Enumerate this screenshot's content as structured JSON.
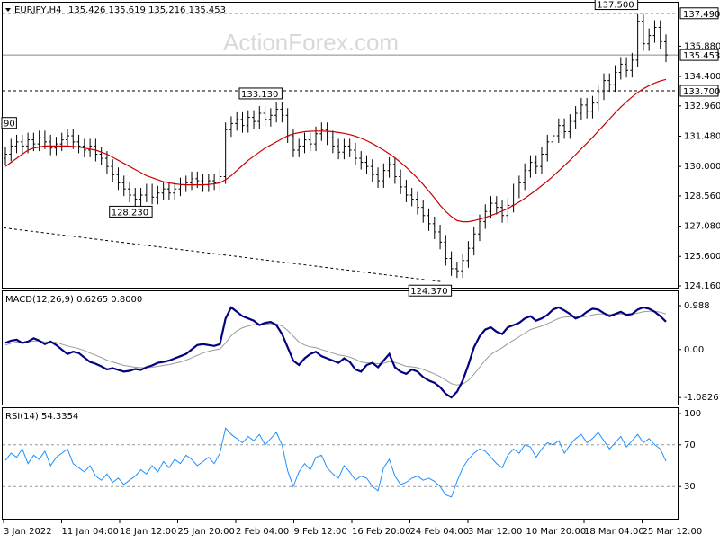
{
  "header": {
    "symbol_label": "EURJPY,H4",
    "ohlc_label": "135.426 135.619 135.216 135.453"
  },
  "watermark": "ActionForex.com",
  "colors": {
    "price_bars": "#000000",
    "moving_average": "#cc0000",
    "macd_line": "#000080",
    "signal_line": "#999999",
    "rsi_line": "#1e90ff",
    "grid": "#000000"
  },
  "chart_data": [
    {
      "type": "bar",
      "name": "price",
      "y_ticks": [
        124.16,
        125.6,
        127.08,
        128.56,
        130.0,
        131.48,
        132.96,
        134.4,
        135.88
      ],
      "ylim": [
        124.16,
        137.7
      ],
      "x_ticks": [
        "3 Jan 2022",
        "11 Jan 04:00",
        "18 Jan 12:00",
        "25 Jan 20:00",
        "2 Feb 04:00",
        "9 Feb 12:00",
        "16 Feb 20:00",
        "24 Feb 04:00",
        "3 Mar 12:00",
        "10 Mar 20:00",
        "18 Mar 04:00",
        "25 Mar 12:00"
      ],
      "horizontal_levels": [
        {
          "label": "137.490",
          "value": 137.49,
          "style": "dashed"
        },
        {
          "label": "135.453",
          "value": 135.453,
          "style": "solid",
          "current": true
        },
        {
          "label": "133.700",
          "value": 133.7,
          "style": "dashed"
        }
      ],
      "annotations": [
        {
          "label": "133.130",
          "value": 133.13
        },
        {
          "label": "128.230",
          "value": 128.23
        },
        {
          "label": "124.370",
          "value": 124.37
        },
        {
          "label": "137.500",
          "value": 137.5
        },
        {
          "label": "90",
          "value": 131.69
        }
      ],
      "closes": [
        130.6,
        131.0,
        131.2,
        131.0,
        131.3,
        131.1,
        131.4,
        131.2,
        130.9,
        131.1,
        131.3,
        131.5,
        131.2,
        131.0,
        130.8,
        131.0,
        130.6,
        130.4,
        130.0,
        129.6,
        129.2,
        128.9,
        128.6,
        128.4,
        128.6,
        128.8,
        128.5,
        128.7,
        128.9,
        128.7,
        128.9,
        129.1,
        129.2,
        129.4,
        129.3,
        129.1,
        129.3,
        129.2,
        129.5,
        131.8,
        132.1,
        132.3,
        132.0,
        132.4,
        132.2,
        132.6,
        132.3,
        132.5,
        132.8,
        132.5,
        131.5,
        130.8,
        131.0,
        131.3,
        131.1,
        131.6,
        131.8,
        131.4,
        131.0,
        130.7,
        131.0,
        130.8,
        130.4,
        130.2,
        130.0,
        129.6,
        129.3,
        129.8,
        130.1,
        129.5,
        129.0,
        128.6,
        128.4,
        128.0,
        127.6,
        127.2,
        126.8,
        126.3,
        125.5,
        125.0,
        124.9,
        125.4,
        126.0,
        126.7,
        127.3,
        127.8,
        128.2,
        128.0,
        127.6,
        128.1,
        128.8,
        129.2,
        129.8,
        130.2,
        130.0,
        130.6,
        131.2,
        131.5,
        132.0,
        131.7,
        132.2,
        132.6,
        133.0,
        132.7,
        133.1,
        133.6,
        134.2,
        134.0,
        134.6,
        135.0,
        134.7,
        135.2,
        137.1,
        136.0,
        136.4,
        136.8,
        136.1,
        135.453
      ],
      "ma_series_name": "",
      "ma_values": [
        130.0,
        130.2,
        130.4,
        130.6,
        130.8,
        130.9,
        130.95,
        131.0,
        131.0,
        131.0,
        131.0,
        131.0,
        130.98,
        130.95,
        130.9,
        130.85,
        130.8,
        130.7,
        130.6,
        130.45,
        130.3,
        130.15,
        130.0,
        129.85,
        129.7,
        129.55,
        129.45,
        129.35,
        129.25,
        129.2,
        129.15,
        129.12,
        129.1,
        129.1,
        129.1,
        129.1,
        129.12,
        129.15,
        129.2,
        129.35,
        129.55,
        129.8,
        130.05,
        130.3,
        130.5,
        130.7,
        130.9,
        131.05,
        131.2,
        131.35,
        131.5,
        131.6,
        131.65,
        131.7,
        131.72,
        131.73,
        131.73,
        131.72,
        131.7,
        131.66,
        131.62,
        131.56,
        131.48,
        131.38,
        131.26,
        131.12,
        130.96,
        130.8,
        130.62,
        130.42,
        130.2,
        129.96,
        129.7,
        129.42,
        129.12,
        128.8,
        128.46,
        128.1,
        127.8,
        127.55,
        127.35,
        127.3,
        127.3,
        127.35,
        127.42,
        127.5,
        127.6,
        127.7,
        127.82,
        127.95,
        128.1,
        128.26,
        128.44,
        128.64,
        128.84,
        129.06,
        129.28,
        129.52,
        129.78,
        130.04,
        130.3,
        130.58,
        130.86,
        131.14,
        131.42,
        131.72,
        132.02,
        132.32,
        132.62,
        132.9,
        133.16,
        133.4,
        133.62,
        133.8,
        133.95,
        134.08,
        134.18,
        134.26
      ]
    },
    {
      "type": "line",
      "name": "macd",
      "label": "MACD(12,26,9) 0.6265 0.8000",
      "y_ticks": [
        -1.0826,
        0.0,
        0.988
      ],
      "y_tick_labels": [
        "-1.0826",
        "0.00",
        "0.988"
      ],
      "ylim": [
        -1.2,
        1.15
      ],
      "macd_values": [
        0.15,
        0.2,
        0.22,
        0.15,
        0.18,
        0.25,
        0.2,
        0.12,
        0.18,
        0.1,
        0.0,
        -0.1,
        -0.05,
        -0.08,
        -0.18,
        -0.28,
        -0.32,
        -0.38,
        -0.45,
        -0.42,
        -0.46,
        -0.5,
        -0.48,
        -0.44,
        -0.46,
        -0.4,
        -0.36,
        -0.3,
        -0.28,
        -0.25,
        -0.2,
        -0.15,
        -0.1,
        0.0,
        0.1,
        0.12,
        0.1,
        0.08,
        0.12,
        0.7,
        0.95,
        0.85,
        0.75,
        0.7,
        0.65,
        0.55,
        0.6,
        0.62,
        0.55,
        0.35,
        0.05,
        -0.25,
        -0.35,
        -0.2,
        -0.1,
        -0.05,
        -0.15,
        -0.2,
        -0.25,
        -0.3,
        -0.2,
        -0.28,
        -0.45,
        -0.5,
        -0.35,
        -0.3,
        -0.4,
        -0.25,
        -0.1,
        -0.4,
        -0.5,
        -0.55,
        -0.45,
        -0.5,
        -0.62,
        -0.7,
        -0.75,
        -0.85,
        -1.0,
        -1.08,
        -0.95,
        -0.7,
        -0.35,
        0.05,
        0.3,
        0.45,
        0.5,
        0.4,
        0.35,
        0.5,
        0.55,
        0.6,
        0.7,
        0.75,
        0.65,
        0.7,
        0.78,
        0.9,
        0.95,
        0.88,
        0.8,
        0.7,
        0.75,
        0.85,
        0.92,
        0.9,
        0.82,
        0.75,
        0.8,
        0.85,
        0.78,
        0.8,
        0.9,
        0.95,
        0.92,
        0.85,
        0.75,
        0.6265
      ],
      "signal_values": [
        0.1,
        0.14,
        0.17,
        0.16,
        0.17,
        0.19,
        0.19,
        0.17,
        0.17,
        0.16,
        0.12,
        0.08,
        0.05,
        0.02,
        -0.02,
        -0.08,
        -0.13,
        -0.18,
        -0.24,
        -0.28,
        -0.32,
        -0.36,
        -0.38,
        -0.4,
        -0.41,
        -0.41,
        -0.4,
        -0.38,
        -0.36,
        -0.34,
        -0.31,
        -0.28,
        -0.24,
        -0.19,
        -0.13,
        -0.08,
        -0.04,
        -0.01,
        0.01,
        0.15,
        0.31,
        0.42,
        0.49,
        0.53,
        0.56,
        0.56,
        0.57,
        0.58,
        0.58,
        0.53,
        0.43,
        0.3,
        0.17,
        0.1,
        0.06,
        0.04,
        0.0,
        -0.04,
        -0.08,
        -0.12,
        -0.14,
        -0.17,
        -0.22,
        -0.28,
        -0.3,
        -0.3,
        -0.32,
        -0.31,
        -0.27,
        -0.29,
        -0.33,
        -0.38,
        -0.39,
        -0.41,
        -0.45,
        -0.5,
        -0.55,
        -0.61,
        -0.69,
        -0.77,
        -0.8,
        -0.78,
        -0.7,
        -0.56,
        -0.4,
        -0.24,
        -0.11,
        -0.03,
        0.04,
        0.13,
        0.21,
        0.29,
        0.37,
        0.45,
        0.49,
        0.53,
        0.58,
        0.64,
        0.7,
        0.73,
        0.74,
        0.73,
        0.73,
        0.75,
        0.78,
        0.8,
        0.8,
        0.79,
        0.79,
        0.8,
        0.8,
        0.8,
        0.82,
        0.85,
        0.86,
        0.86,
        0.84,
        0.8
      ]
    },
    {
      "type": "line",
      "name": "rsi",
      "label": "RSI(14) 54.3354",
      "y_ticks": [
        30,
        70,
        100
      ],
      "ylim": [
        0,
        100
      ],
      "values": [
        55,
        62,
        58,
        66,
        52,
        60,
        56,
        64,
        50,
        58,
        62,
        66,
        52,
        48,
        44,
        50,
        40,
        36,
        42,
        34,
        38,
        32,
        36,
        40,
        46,
        42,
        50,
        44,
        54,
        48,
        56,
        52,
        60,
        56,
        50,
        54,
        58,
        52,
        62,
        86,
        80,
        76,
        72,
        78,
        74,
        80,
        70,
        76,
        82,
        70,
        45,
        30,
        44,
        52,
        46,
        58,
        60,
        48,
        42,
        38,
        50,
        44,
        36,
        40,
        38,
        30,
        26,
        48,
        56,
        40,
        32,
        34,
        38,
        40,
        36,
        38,
        35,
        30,
        22,
        20,
        35,
        48,
        56,
        62,
        66,
        64,
        58,
        52,
        48,
        60,
        66,
        62,
        70,
        68,
        58,
        66,
        72,
        70,
        74,
        62,
        70,
        76,
        80,
        72,
        76,
        82,
        74,
        66,
        72,
        78,
        68,
        74,
        80,
        72,
        76,
        70,
        66,
        54.3
      ]
    }
  ]
}
